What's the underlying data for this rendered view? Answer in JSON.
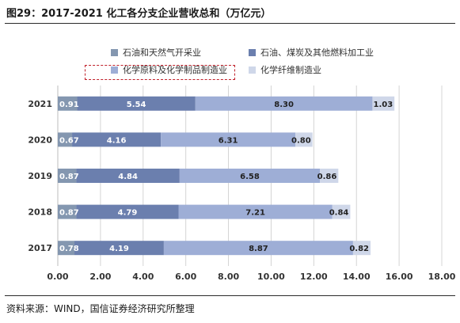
{
  "figure_title": "图29：2017-2021 化工各分支企业营收总和（万亿元）",
  "source_note": "资料来源：WIND，国信证券经济研究所整理",
  "chart_data": {
    "type": "bar",
    "orientation": "horizontal",
    "stacked": true,
    "title": "",
    "xlabel": "",
    "ylabel": "",
    "categories": [
      "2021",
      "2020",
      "2019",
      "2018",
      "2017"
    ],
    "series": [
      {
        "name": "石油和天然气开采业",
        "color": "#8497b0",
        "values": [
          0.91,
          0.67,
          0.87,
          0.87,
          0.78
        ]
      },
      {
        "name": "石油、煤炭及其他燃料加工业",
        "color": "#6b7fae",
        "values": [
          5.54,
          4.16,
          4.84,
          4.79,
          4.19
        ]
      },
      {
        "name": "化学原料及化学制品制造业",
        "color": "#9eaed6",
        "values": [
          8.3,
          6.31,
          6.58,
          7.21,
          8.87
        ]
      },
      {
        "name": "化学纤维制造业",
        "color": "#cfd7e9",
        "values": [
          1.03,
          0.8,
          0.86,
          0.84,
          0.82
        ]
      }
    ],
    "xlim": [
      0,
      18
    ],
    "xticks": [
      "0.00",
      "2.00",
      "4.00",
      "6.00",
      "8.00",
      "10.00",
      "12.00",
      "14.00",
      "16.00",
      "18.00"
    ],
    "grid": true,
    "legend_position": "top",
    "highlighted_legend_entry": "化学原料及化学制品制造业",
    "highlight_color": "#c0202a"
  }
}
